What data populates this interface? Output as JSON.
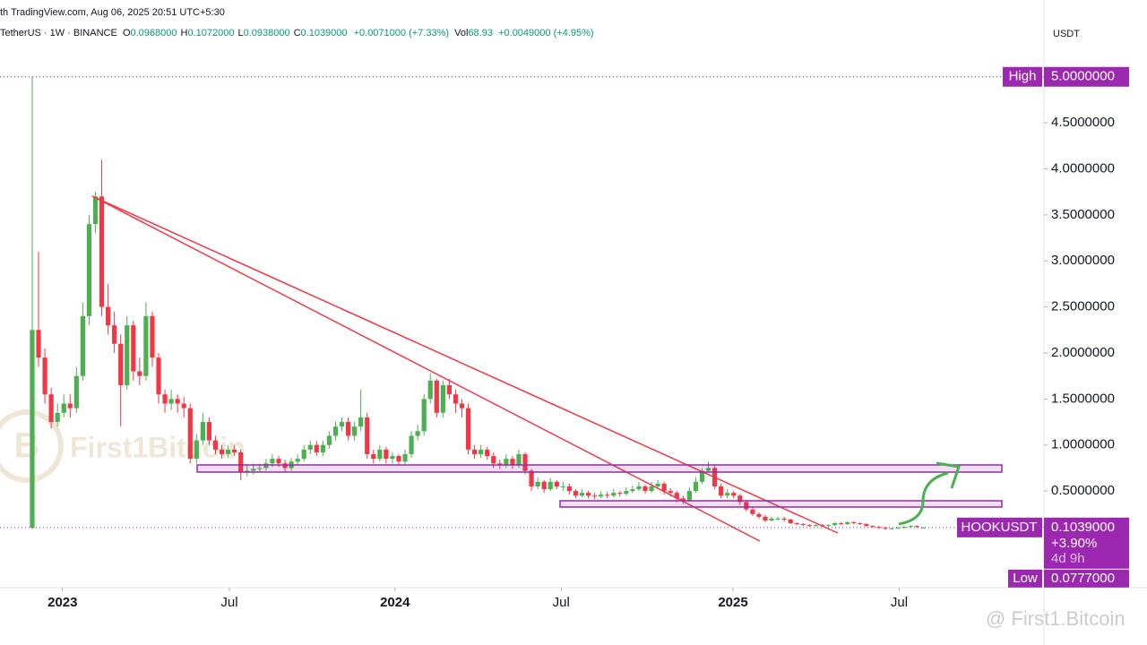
{
  "chart_data": {
    "type": "candlestick",
    "source": "th TradingView.com, Aug 06, 2025 20:51 UTC+5:30",
    "symbol": "TetherUS · 1W · BINANCE",
    "ohlc": [
      {
        "label": "O",
        "value": "0.0968000"
      },
      {
        "label": "H",
        "value": "0.1072000"
      },
      {
        "label": "L",
        "value": "0.0938000"
      },
      {
        "label": "C",
        "value": "0.1039000"
      }
    ],
    "change": "+0.0071000 (+7.33%)",
    "vol_label": "Vol",
    "vol": "68.93",
    "vol_change": "+0.0049000 (+4.95%)",
    "currency": "USDT",
    "ticker": "HOOKUSDT",
    "high": {
      "name": "High",
      "value": 5.0,
      "label": "5.0000000"
    },
    "last": {
      "value": 0.1039,
      "label": "0.1039000",
      "change": "+3.90%",
      "countdown": "4d 9h"
    },
    "low": {
      "name": "Low",
      "value": 0.0777,
      "label": "0.0777000"
    },
    "watermarks": [
      "First1Bitcoin",
      "@ First1.Bitcoin"
    ],
    "up_color": "#4caf50",
    "down_color": "#f23645",
    "grid": false,
    "xlim": [
      -5.1,
      160.1
    ],
    "xticks": [
      {
        "value": 4.8,
        "label": "2023"
      },
      {
        "value": 31.2,
        "label": "Jul"
      },
      {
        "value": 57.4,
        "label": "2024"
      },
      {
        "value": 83.7,
        "label": "Jul"
      },
      {
        "value": 110.9,
        "label": "2025"
      },
      {
        "value": 137.2,
        "label": "Jul"
      }
    ],
    "ylim": [
      -0.55,
      5.64
    ],
    "yticks": [
      {
        "value": 0.5,
        "label": "0.5000000"
      },
      {
        "value": 1.0,
        "label": "1.0000000"
      },
      {
        "value": 1.5,
        "label": "1.5000000"
      },
      {
        "value": 2.0,
        "label": "2.0000000"
      },
      {
        "value": 2.5,
        "label": "2.5000000"
      },
      {
        "value": 3.0,
        "label": "3.0000000"
      },
      {
        "value": 3.5,
        "label": "3.5000000"
      },
      {
        "value": 4.0,
        "label": "4.0000000"
      },
      {
        "value": 4.5,
        "label": "4.5000000"
      }
    ],
    "open": [
      0.1,
      2.25,
      1.95,
      1.55,
      1.25,
      1.35,
      1.45,
      1.4,
      1.75,
      2.4,
      3.4,
      3.7,
      2.5,
      2.3,
      2.1,
      1.65,
      2.3,
      1.8,
      1.75,
      2.4,
      1.95,
      1.55,
      1.45,
      1.5,
      1.45,
      1.4,
      0.85,
      1.05,
      1.25,
      1.05,
      0.95,
      0.9,
      0.95,
      0.92,
      0.7,
      0.72,
      0.74,
      0.75,
      0.8,
      0.85,
      0.8,
      0.75,
      0.82,
      0.85,
      0.95,
      1.0,
      0.92,
      1.0,
      1.1,
      1.2,
      1.25,
      1.1,
      1.2,
      1.3,
      0.9,
      0.85,
      0.95,
      0.85,
      0.88,
      0.82,
      0.9,
      1.1,
      1.15,
      1.5,
      1.7,
      1.35,
      1.65,
      1.55,
      1.45,
      1.4,
      0.95,
      0.9,
      0.95,
      0.88,
      0.8,
      0.78,
      0.85,
      0.78,
      0.9,
      0.72,
      0.55,
      0.6,
      0.52,
      0.6,
      0.55,
      0.55,
      0.5,
      0.45,
      0.48,
      0.45,
      0.44,
      0.46,
      0.45,
      0.48,
      0.47,
      0.5,
      0.52,
      0.55,
      0.5,
      0.55,
      0.58,
      0.5,
      0.48,
      0.42,
      0.4,
      0.5,
      0.6,
      0.72,
      0.75,
      0.55,
      0.45,
      0.48,
      0.45,
      0.38,
      0.3,
      0.25,
      0.22,
      0.18,
      0.2,
      0.2,
      0.19,
      0.15,
      0.14,
      0.13,
      0.12,
      0.13,
      0.12,
      0.13,
      0.15,
      0.14,
      0.16,
      0.15,
      0.14,
      0.12,
      0.11,
      0.1,
      0.09,
      0.095,
      0.1,
      0.11,
      0.12,
      0.0968
    ],
    "high_prices": [
      5.0,
      3.1,
      2.05,
      1.62,
      1.45,
      1.55,
      1.55,
      1.85,
      2.55,
      3.5,
      3.75,
      4.1,
      2.75,
      2.45,
      2.2,
      2.4,
      2.35,
      1.95,
      2.55,
      2.45,
      2.0,
      1.6,
      1.6,
      1.55,
      1.52,
      1.45,
      1.12,
      1.35,
      1.3,
      1.1,
      1.0,
      1.0,
      1.0,
      0.95,
      0.78,
      0.8,
      0.8,
      0.85,
      0.9,
      0.88,
      0.84,
      0.86,
      0.9,
      1.0,
      1.05,
      1.04,
      1.05,
      1.15,
      1.25,
      1.3,
      1.3,
      1.25,
      1.6,
      1.35,
      0.95,
      1.0,
      0.98,
      0.92,
      0.9,
      0.95,
      1.15,
      1.22,
      1.55,
      1.78,
      1.72,
      1.7,
      1.72,
      1.6,
      1.5,
      1.45,
      1.0,
      1.0,
      0.98,
      0.92,
      0.84,
      0.9,
      0.88,
      0.95,
      0.92,
      0.74,
      0.65,
      0.62,
      0.64,
      0.62,
      0.6,
      0.58,
      0.52,
      0.52,
      0.5,
      0.48,
      0.5,
      0.49,
      0.52,
      0.5,
      0.54,
      0.56,
      0.6,
      0.57,
      0.6,
      0.62,
      0.6,
      0.53,
      0.5,
      0.45,
      0.54,
      0.65,
      0.75,
      0.82,
      0.78,
      0.58,
      0.52,
      0.5,
      0.47,
      0.4,
      0.32,
      0.27,
      0.24,
      0.22,
      0.22,
      0.22,
      0.2,
      0.16,
      0.15,
      0.14,
      0.14,
      0.14,
      0.14,
      0.16,
      0.16,
      0.17,
      0.17,
      0.16,
      0.15,
      0.13,
      0.12,
      0.11,
      0.1,
      0.11,
      0.12,
      0.13,
      0.125,
      0.1072
    ],
    "low_prices": [
      0.09,
      1.85,
      1.45,
      1.18,
      1.2,
      1.3,
      1.3,
      1.35,
      1.7,
      2.3,
      3.3,
      2.4,
      2.2,
      2.0,
      1.2,
      1.6,
      1.7,
      1.65,
      1.7,
      1.85,
      1.45,
      1.35,
      1.38,
      1.35,
      1.3,
      0.8,
      0.8,
      1.0,
      1.0,
      0.9,
      0.85,
      0.86,
      0.88,
      0.62,
      0.66,
      0.68,
      0.7,
      0.72,
      0.76,
      0.76,
      0.7,
      0.72,
      0.78,
      0.82,
      0.9,
      0.88,
      0.88,
      0.96,
      1.05,
      1.15,
      1.05,
      1.05,
      1.15,
      0.85,
      0.8,
      0.82,
      0.8,
      0.8,
      0.78,
      0.78,
      0.86,
      1.05,
      1.1,
      1.45,
      1.3,
      1.3,
      1.5,
      1.35,
      1.3,
      0.9,
      0.85,
      0.86,
      0.84,
      0.75,
      0.74,
      0.75,
      0.74,
      0.75,
      0.68,
      0.5,
      0.52,
      0.48,
      0.5,
      0.52,
      0.5,
      0.46,
      0.42,
      0.43,
      0.42,
      0.41,
      0.42,
      0.42,
      0.43,
      0.44,
      0.45,
      0.48,
      0.5,
      0.47,
      0.48,
      0.53,
      0.46,
      0.44,
      0.38,
      0.36,
      0.38,
      0.48,
      0.58,
      0.7,
      0.52,
      0.42,
      0.42,
      0.42,
      0.35,
      0.28,
      0.23,
      0.2,
      0.16,
      0.17,
      0.18,
      0.17,
      0.14,
      0.13,
      0.12,
      0.11,
      0.11,
      0.11,
      0.11,
      0.12,
      0.13,
      0.13,
      0.14,
      0.13,
      0.11,
      0.1,
      0.09,
      0.0777,
      0.085,
      0.09,
      0.095,
      0.105,
      0.1,
      0.0938
    ],
    "close": [
      2.25,
      1.95,
      1.55,
      1.25,
      1.35,
      1.45,
      1.4,
      1.75,
      2.4,
      3.4,
      3.7,
      2.5,
      2.3,
      2.1,
      1.65,
      2.3,
      1.8,
      1.75,
      2.4,
      1.95,
      1.55,
      1.45,
      1.5,
      1.45,
      1.4,
      0.85,
      1.05,
      1.25,
      1.05,
      0.95,
      0.9,
      0.95,
      0.92,
      0.7,
      0.72,
      0.74,
      0.75,
      0.8,
      0.85,
      0.8,
      0.75,
      0.82,
      0.85,
      0.95,
      1.0,
      0.92,
      1.0,
      1.1,
      1.2,
      1.25,
      1.1,
      1.2,
      1.3,
      0.9,
      0.85,
      0.95,
      0.85,
      0.88,
      0.82,
      0.9,
      1.1,
      1.15,
      1.5,
      1.7,
      1.35,
      1.65,
      1.55,
      1.45,
      1.4,
      0.95,
      0.9,
      0.95,
      0.88,
      0.8,
      0.78,
      0.85,
      0.78,
      0.9,
      0.72,
      0.55,
      0.6,
      0.52,
      0.6,
      0.55,
      0.55,
      0.5,
      0.45,
      0.48,
      0.45,
      0.44,
      0.46,
      0.45,
      0.48,
      0.47,
      0.5,
      0.52,
      0.55,
      0.5,
      0.55,
      0.58,
      0.5,
      0.48,
      0.42,
      0.4,
      0.5,
      0.6,
      0.72,
      0.75,
      0.55,
      0.45,
      0.48,
      0.45,
      0.38,
      0.3,
      0.25,
      0.22,
      0.18,
      0.2,
      0.2,
      0.19,
      0.15,
      0.14,
      0.13,
      0.12,
      0.13,
      0.12,
      0.13,
      0.15,
      0.14,
      0.16,
      0.15,
      0.14,
      0.12,
      0.11,
      0.1,
      0.09,
      0.095,
      0.1,
      0.11,
      0.12,
      0.11,
      0.1039
    ]
  }
}
